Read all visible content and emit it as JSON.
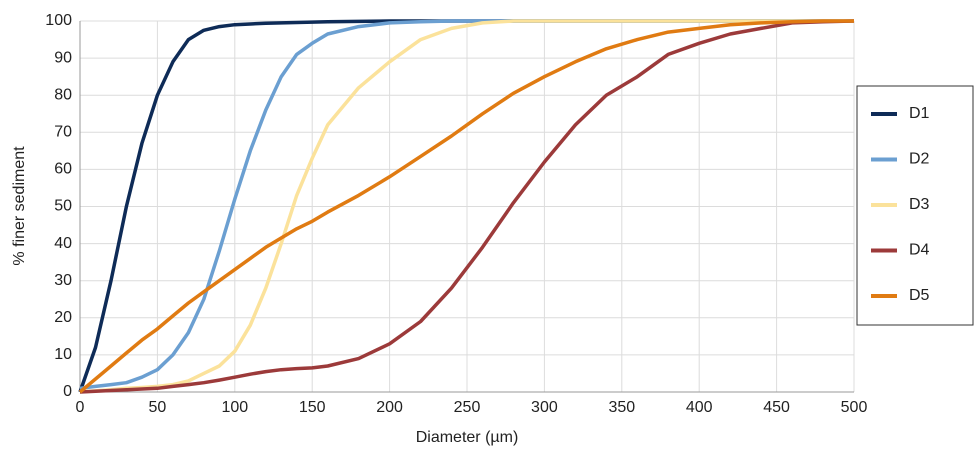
{
  "chart_data": {
    "type": "line",
    "xlabel": "Diameter (µm)",
    "ylabel": "% finer sediment",
    "x": [
      0,
      10,
      20,
      30,
      40,
      50,
      60,
      70,
      80,
      90,
      100,
      110,
      120,
      130,
      140,
      150,
      160,
      180,
      200,
      220,
      240,
      260,
      280,
      300,
      320,
      340,
      360,
      380,
      400,
      420,
      440,
      460,
      480,
      500
    ],
    "series": [
      {
        "name": "D1",
        "color": "#0e2b57",
        "values": [
          0,
          12,
          30,
          50,
          67,
          80,
          89,
          95,
          97.5,
          98.5,
          99,
          99.2,
          99.4,
          99.5,
          99.6,
          99.7,
          99.8,
          99.9,
          100,
          100,
          100,
          100,
          100,
          100,
          100,
          100,
          100,
          100,
          100,
          100,
          100,
          100,
          100,
          100
        ]
      },
      {
        "name": "D2",
        "color": "#6b9fd1",
        "values": [
          1,
          1.5,
          2,
          2.5,
          4,
          6,
          10,
          16,
          25,
          38,
          52,
          65,
          76,
          85,
          91,
          94,
          96.5,
          98.5,
          99.5,
          99.8,
          100,
          100,
          100,
          100,
          100,
          100,
          100,
          100,
          100,
          100,
          100,
          100,
          100,
          100
        ]
      },
      {
        "name": "D3",
        "color": "#fbe29b",
        "values": [
          0,
          0.3,
          0.6,
          1,
          1.2,
          1.5,
          2,
          3,
          5,
          7,
          11,
          18,
          28,
          40,
          53,
          63,
          72,
          82,
          89,
          95,
          98,
          99.5,
          100,
          100,
          100,
          100,
          100,
          100,
          100,
          100,
          100,
          100,
          100,
          100
        ]
      },
      {
        "name": "D4",
        "color": "#9c3a3a",
        "values": [
          0,
          0.2,
          0.4,
          0.6,
          0.8,
          1,
          1.5,
          2,
          2.5,
          3.2,
          4,
          4.8,
          5.5,
          6,
          6.3,
          6.5,
          7,
          9,
          13,
          19,
          28,
          39,
          51,
          62,
          72,
          80,
          85,
          91,
          94,
          96.5,
          98,
          99.5,
          99.8,
          100
        ]
      },
      {
        "name": "D5",
        "color": "#e07b12",
        "values": [
          0,
          3.5,
          7,
          10.5,
          14,
          17,
          20.5,
          24,
          27,
          30,
          33,
          36,
          39,
          41.5,
          44,
          46,
          48.5,
          53,
          58,
          63.5,
          69,
          75,
          80.5,
          85,
          89,
          92.5,
          95,
          97,
          98,
          99,
          99.5,
          99.8,
          100,
          100
        ]
      }
    ],
    "xlim": [
      0,
      500
    ],
    "xticks": [
      0,
      50,
      100,
      150,
      200,
      250,
      300,
      350,
      400,
      450,
      500
    ],
    "ylim": [
      0,
      100
    ],
    "yticks": [
      0,
      10,
      20,
      30,
      40,
      50,
      60,
      70,
      80,
      90,
      100
    ],
    "grid": true,
    "legend": "right"
  }
}
